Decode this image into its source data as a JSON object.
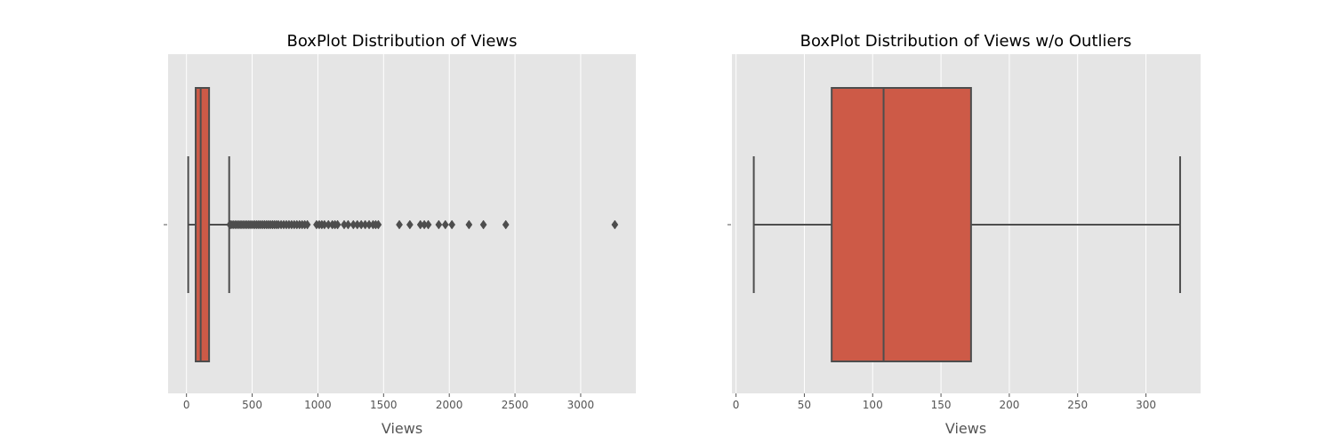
{
  "colors": {
    "axes_background": "#e5e5e5",
    "grid": "#ffffff",
    "box_fill": "#cd5a47",
    "box_edge": "#4d4d4d",
    "text": "#555555"
  },
  "chart_data": [
    {
      "type": "box",
      "title": "BoxPlot Distribution of Views",
      "xlabel": "Views",
      "ylabel": "",
      "orientation": "horizontal",
      "grid": true,
      "xlim": [
        -140,
        3420
      ],
      "xticks": [
        0,
        500,
        1000,
        1500,
        2000,
        2500,
        3000
      ],
      "tick_labels": [
        "0",
        "500",
        "1000",
        "1500",
        "2000",
        "2500",
        "3000"
      ],
      "box": {
        "whisker_low": 13,
        "q1": 70,
        "median": 108,
        "q3": 172,
        "whisker_high": 325
      },
      "fliers": [
        330,
        340,
        355,
        370,
        385,
        400,
        415,
        430,
        445,
        460,
        475,
        490,
        505,
        520,
        535,
        550,
        565,
        580,
        595,
        610,
        625,
        640,
        655,
        670,
        685,
        700,
        720,
        740,
        760,
        780,
        800,
        820,
        840,
        860,
        880,
        900,
        920,
        990,
        1010,
        1030,
        1050,
        1080,
        1110,
        1130,
        1150,
        1200,
        1230,
        1270,
        1300,
        1330,
        1360,
        1390,
        1420,
        1440,
        1460,
        1620,
        1700,
        1780,
        1810,
        1840,
        1920,
        1970,
        2020,
        2150,
        2260,
        2430,
        3260
      ]
    },
    {
      "type": "box",
      "title": "BoxPlot Distribution of Views w/o Outliers",
      "xlabel": "Views",
      "ylabel": "",
      "orientation": "horizontal",
      "grid": true,
      "xlim": [
        -3,
        340
      ],
      "xticks": [
        0,
        50,
        100,
        150,
        200,
        250,
        300
      ],
      "tick_labels": [
        "0",
        "50",
        "100",
        "150",
        "200",
        "250",
        "300"
      ],
      "box": {
        "whisker_low": 13,
        "q1": 70,
        "median": 108,
        "q3": 172,
        "whisker_high": 325
      },
      "fliers": []
    }
  ]
}
